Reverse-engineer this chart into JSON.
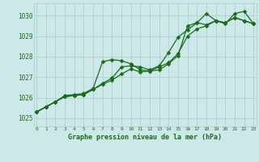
{
  "title": "Graphe pression niveau de la mer (hPa)",
  "xlabel_ticks": [
    0,
    1,
    2,
    3,
    4,
    5,
    6,
    7,
    8,
    9,
    10,
    11,
    12,
    13,
    14,
    15,
    16,
    17,
    18,
    19,
    20,
    21,
    22,
    23
  ],
  "ylim": [
    1024.6,
    1030.6
  ],
  "yticks": [
    1025,
    1026,
    1027,
    1028,
    1029,
    1030
  ],
  "xlim": [
    -0.3,
    23.3
  ],
  "bg_color": "#cce8e8",
  "grid_color": "#aacccc",
  "line_color": "#1a6b1a",
  "line1_x": [
    0,
    1,
    2,
    3,
    4,
    5,
    6,
    7,
    8,
    9,
    10,
    11,
    12,
    13,
    14,
    15,
    16,
    17,
    18,
    19,
    20,
    21,
    22,
    23
  ],
  "line1_y": [
    1025.3,
    1025.55,
    1025.8,
    1026.1,
    1026.15,
    1026.2,
    1026.45,
    1027.75,
    1027.85,
    1027.8,
    1027.65,
    1027.35,
    1027.3,
    1027.35,
    1027.65,
    1028.05,
    1029.5,
    1029.65,
    1030.1,
    1029.75,
    1029.6,
    1030.1,
    1030.2,
    1029.6
  ],
  "line2_x": [
    0,
    1,
    2,
    3,
    4,
    5,
    6,
    7,
    8,
    9,
    10,
    11,
    12,
    13,
    14,
    15,
    16,
    17,
    18,
    19,
    20,
    21,
    22,
    23
  ],
  "line2_y": [
    1025.3,
    1025.55,
    1025.8,
    1026.05,
    1026.1,
    1026.15,
    1026.4,
    1026.7,
    1026.95,
    1027.5,
    1027.55,
    1027.5,
    1027.35,
    1027.55,
    1028.2,
    1028.95,
    1029.3,
    1029.65,
    1029.55,
    1029.75,
    1029.65,
    1029.9,
    1029.75,
    1029.6
  ],
  "line3_x": [
    0,
    1,
    2,
    3,
    4,
    5,
    6,
    7,
    8,
    9,
    10,
    11,
    12,
    13,
    14,
    15,
    16,
    17,
    18,
    19,
    20,
    21,
    22,
    23
  ],
  "line3_y": [
    1025.3,
    1025.55,
    1025.8,
    1026.05,
    1026.1,
    1026.15,
    1026.4,
    1026.65,
    1026.85,
    1027.15,
    1027.4,
    1027.25,
    1027.3,
    1027.5,
    1027.7,
    1028.15,
    1029.0,
    1029.35,
    1029.5,
    1029.75,
    1029.65,
    1029.9,
    1029.75,
    1029.6
  ]
}
